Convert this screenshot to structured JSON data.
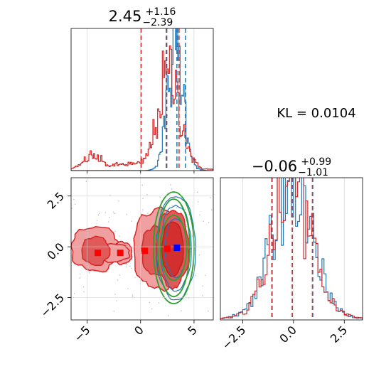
{
  "chart_data": [
    {
      "type": "histogram",
      "panel": "top-left",
      "title": {
        "median": "2.45",
        "plus": "+1.16",
        "minus": "−2.39"
      },
      "xlim": [
        -6.5,
        6.8
      ],
      "grid": true,
      "series": [
        {
          "name": "",
          "color": "#1f77b4",
          "mean": 3.3,
          "sd": 0.75,
          "quantile_lines": [
            2.4,
            3.4,
            4.2
          ]
        },
        {
          "name": "",
          "color": "#d62728",
          "mean": 2.7,
          "sd": 1.05,
          "quantile_lines": [
            0.05,
            2.45,
            3.6
          ]
        }
      ],
      "secondary_bump": {
        "center": -4.5,
        "height": 0.11
      }
    },
    {
      "type": "contour",
      "panel": "bottom-left",
      "xlim": [
        -6.5,
        6.8
      ],
      "ylim": [
        -3.6,
        3.4
      ],
      "x_ticks": [
        {
          "value": -5,
          "label": "−5"
        },
        {
          "value": 0,
          "label": "0"
        },
        {
          "value": 5,
          "label": "5"
        }
      ],
      "y_ticks": [
        {
          "value": 2.5,
          "label": "2.5"
        },
        {
          "value": 0,
          "label": "0.0"
        },
        {
          "value": -2.5,
          "label": "−2.5"
        }
      ],
      "grid": true,
      "red_mode_markers": [
        {
          "x": -4.0,
          "y": -0.3
        },
        {
          "x": -1.9,
          "y": -0.3
        },
        {
          "x": 0.4,
          "y": -0.2
        },
        {
          "x": 2.5,
          "y": -0.1
        }
      ],
      "blue_marker": {
        "x": 3.4,
        "y": -0.05
      },
      "red_regions": [
        {
          "cx": -4.2,
          "cy": -0.1,
          "rx": 2.3,
          "ry": 1.1
        },
        {
          "cx": -1.7,
          "cy": -0.3,
          "rx": 0.9,
          "ry": 0.55
        },
        {
          "cx": 1.6,
          "cy": -0.1,
          "rx": 2.3,
          "ry": 2.0
        },
        {
          "cx": 3.0,
          "cy": -0.1,
          "rx": 1.5,
          "ry": 1.9
        },
        {
          "cx": 3.0,
          "cy": -0.1,
          "rx": 1.0,
          "ry": 1.35
        }
      ],
      "green_ellipses": [
        {
          "cx": 3.1,
          "cy": -0.05,
          "rx": 1.2,
          "ry": 1.6
        },
        {
          "cx": 3.1,
          "cy": -0.05,
          "rx": 1.5,
          "ry": 2.4
        },
        {
          "cx": 3.1,
          "cy": -0.05,
          "rx": 1.9,
          "ry": 2.75
        }
      ]
    },
    {
      "type": "histogram",
      "panel": "bottom-right",
      "title": {
        "median": "−0.06",
        "plus": "+0.99",
        "minus": "−1.01"
      },
      "xlim": [
        -3.6,
        3.4
      ],
      "x_ticks": [
        {
          "value": -2.5,
          "label": "−2.5"
        },
        {
          "value": 0,
          "label": "0.0"
        },
        {
          "value": 2.5,
          "label": "2.5"
        }
      ],
      "grid": true,
      "series": [
        {
          "name": "",
          "color": "#1f77b4",
          "mean": -0.06,
          "sd": 1.0,
          "quantile_lines": [
            -1.05,
            -0.06,
            0.95
          ]
        },
        {
          "name": "",
          "color": "#d62728",
          "mean": -0.06,
          "sd": 1.0,
          "quantile_lines": [
            -1.07,
            -0.06,
            0.93
          ]
        }
      ]
    }
  ],
  "annotation": {
    "kl_text": "KL = 0.0104"
  },
  "colors": {
    "red": "#d62728",
    "blue": "#1f77b4",
    "green": "#2ca02c",
    "red_fill_light": "#f0a0a0",
    "red_fill_mid": "#e05a5a",
    "red_fill_dark": "#d32f2f"
  }
}
